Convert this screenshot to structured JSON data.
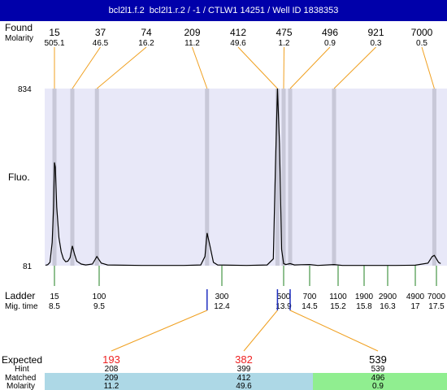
{
  "header": {
    "title": "bcl2l1.f.2  bcl2l1.r.2 / -1 / CTLW1 14251 / Well ID 1838353"
  },
  "labels": {
    "found": "Found",
    "molarity": "Molarity",
    "fluo": "Fluo.",
    "ladder": "Ladder",
    "mig_time": "Mig. time",
    "expected": "Expected",
    "hint": "Hint",
    "matched": "Matched",
    "molarity_bottom": "Molarity"
  },
  "colors": {
    "title_bg": "#0000aa",
    "plot_bg": "#e8e8f8",
    "band": "#c8c8d8",
    "found_line": "#f0a020",
    "ladder_line": "#208020",
    "ladder_blue": "#2030c0",
    "expected_red": "#ee2222",
    "row_blue": "#add8e6",
    "row_green": "#90ee90"
  },
  "chart_data": {
    "type": "line",
    "title": "bcl2l1.f.2  bcl2l1.r.2 / -1 / CTLW1 14251 / Well ID 1838353",
    "ylabel": "Fluo.",
    "ylim": [
      81,
      834
    ],
    "y_ticks": [
      "834",
      "81"
    ],
    "found": {
      "sizes": [
        "15",
        "37",
        "74",
        "209",
        "412",
        "475",
        "496",
        "921",
        "7000"
      ],
      "molarity": [
        "505.1",
        "46.5",
        "16.2",
        "11.2",
        "49.6",
        "1.2",
        "0.9",
        "0.3",
        "0.5"
      ],
      "time": [
        8.5,
        8.9,
        9.45,
        12.05,
        13.75,
        13.9,
        14.05,
        15.1,
        17.45
      ]
    },
    "ladder": {
      "sizes": [
        "15",
        "100",
        "300",
        "500",
        "700",
        "1100",
        "1900",
        "2900",
        "4900",
        "7000"
      ],
      "mig_time": [
        "8.5",
        "9.5",
        "12.4",
        "13.9",
        "14.5",
        "15.2",
        "15.8",
        "16.3",
        "17",
        "17.5"
      ],
      "time": [
        8.5,
        9.5,
        12.4,
        13.9,
        14.5,
        15.2,
        15.8,
        16.3,
        17,
        17.5
      ]
    },
    "time_range": [
      8.3,
      17.6
    ],
    "trace": [
      [
        8.3,
        83
      ],
      [
        8.35,
        85
      ],
      [
        8.4,
        95
      ],
      [
        8.45,
        180
      ],
      [
        8.48,
        330
      ],
      [
        8.5,
        520
      ],
      [
        8.52,
        500
      ],
      [
        8.55,
        330
      ],
      [
        8.6,
        200
      ],
      [
        8.65,
        140
      ],
      [
        8.7,
        110
      ],
      [
        8.75,
        98
      ],
      [
        8.8,
        100
      ],
      [
        8.85,
        115
      ],
      [
        8.9,
        165
      ],
      [
        8.95,
        130
      ],
      [
        9.0,
        100
      ],
      [
        9.1,
        88
      ],
      [
        9.2,
        84
      ],
      [
        9.35,
        88
      ],
      [
        9.45,
        120
      ],
      [
        9.55,
        92
      ],
      [
        9.7,
        84
      ],
      [
        10.5,
        82
      ],
      [
        11.5,
        82
      ],
      [
        11.9,
        84
      ],
      [
        12.0,
        120
      ],
      [
        12.05,
        220
      ],
      [
        12.1,
        180
      ],
      [
        12.2,
        95
      ],
      [
        12.3,
        84
      ],
      [
        13.0,
        82
      ],
      [
        13.5,
        84
      ],
      [
        13.65,
        110
      ],
      [
        13.7,
        500
      ],
      [
        13.75,
        834
      ],
      [
        13.8,
        600
      ],
      [
        13.85,
        150
      ],
      [
        13.9,
        90
      ],
      [
        13.95,
        86
      ],
      [
        14.05,
        90
      ],
      [
        14.15,
        84
      ],
      [
        14.3,
        85
      ],
      [
        14.5,
        86
      ],
      [
        14.7,
        82
      ],
      [
        15.1,
        86
      ],
      [
        15.3,
        82
      ],
      [
        16.5,
        82
      ],
      [
        17.0,
        83
      ],
      [
        17.3,
        92
      ],
      [
        17.4,
        120
      ],
      [
        17.45,
        125
      ],
      [
        17.5,
        110
      ],
      [
        17.55,
        95
      ],
      [
        17.6,
        90
      ]
    ],
    "expected": {
      "sizes": [
        "193",
        "382",
        "539"
      ],
      "hint": [
        "208",
        "399",
        "539"
      ],
      "matched": [
        "209",
        "412",
        "496"
      ],
      "molarity": [
        "11.2",
        "49.6",
        "0.9"
      ],
      "colors": [
        "#ee2222",
        "#ee2222",
        "#000000"
      ]
    }
  }
}
